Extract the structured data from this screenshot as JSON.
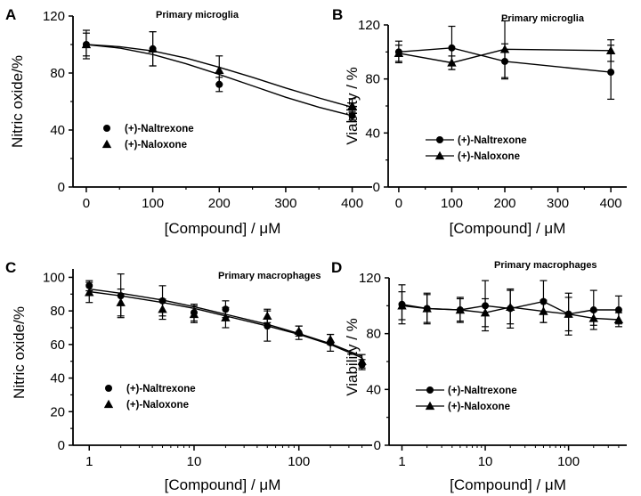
{
  "chart_data": [
    {
      "panel": "A",
      "type": "scatter",
      "title": "Primary microglia",
      "xlabel": "[Compound] / μM",
      "ylabel": "Nitric oxide/%",
      "xscale": "linear",
      "xlim": [
        -20,
        430
      ],
      "ylim": [
        0,
        120
      ],
      "x_ticks": [
        0,
        100,
        200,
        300,
        400
      ],
      "x_tick_labels": [
        "0",
        "100",
        "200",
        "300",
        "400"
      ],
      "y_ticks": [
        0,
        40,
        80,
        120
      ],
      "y_tick_labels": [
        "0",
        "40",
        "80",
        "120"
      ],
      "legend_position": "lower-left",
      "fit_curves": true,
      "series": [
        {
          "name": "(+)-Naltrexone",
          "marker": "circle",
          "x": [
            0,
            100,
            200,
            400
          ],
          "y": [
            100,
            97,
            72,
            50
          ],
          "err": [
            8,
            12,
            5,
            3
          ],
          "fit": {
            "x": [
              0,
              50,
              100,
              150,
              200,
              250,
              300,
              350,
              400
            ],
            "y": [
              100,
              97.5,
              93,
              86.5,
              79,
              71,
              63,
              56,
              50
            ]
          }
        },
        {
          "name": "(+)-Naloxone",
          "marker": "triangle",
          "x": [
            0,
            100,
            200,
            400
          ],
          "y": [
            100,
            97,
            82,
            57
          ],
          "err": [
            10,
            12,
            10,
            5
          ],
          "fit": {
            "x": [
              0,
              50,
              100,
              150,
              200,
              250,
              300,
              350,
              400
            ],
            "y": [
              100,
              98.5,
              95.5,
              90.5,
              84,
              77,
              69.5,
              62.5,
              56
            ]
          }
        }
      ]
    },
    {
      "panel": "B",
      "type": "line",
      "title": "Primary microglia",
      "xlabel": "[Compound] / μM",
      "ylabel": "Viability / %",
      "xscale": "linear",
      "xlim": [
        -20,
        430
      ],
      "ylim": [
        0,
        120
      ],
      "x_ticks": [
        0,
        100,
        200,
        300,
        400
      ],
      "x_tick_labels": [
        "0",
        "100",
        "200",
        "300",
        "400"
      ],
      "y_ticks": [
        0,
        40,
        80,
        120
      ],
      "y_tick_labels": [
        "0",
        "40",
        "80",
        "120"
      ],
      "legend_position": "lower-left",
      "fit_curves": false,
      "series": [
        {
          "name": "(+)-Naltrexone",
          "marker": "circle",
          "x": [
            0,
            100,
            200,
            400
          ],
          "y": [
            100,
            103,
            93,
            85
          ],
          "err": [
            8,
            16,
            13,
            20
          ]
        },
        {
          "name": "(+)-Naloxone",
          "marker": "triangle",
          "x": [
            0,
            100,
            200,
            400
          ],
          "y": [
            99,
            92,
            102,
            101
          ],
          "err": [
            6,
            5,
            21,
            8
          ]
        }
      ]
    },
    {
      "panel": "C",
      "type": "scatter",
      "title": "Primary macrophages",
      "xlabel": "[Compound] / μM",
      "ylabel": "Nitric oxide/%",
      "xscale": "log",
      "xlim": [
        0.7,
        500
      ],
      "ylim": [
        0,
        105
      ],
      "x_ticks": [
        1,
        10,
        100
      ],
      "x_tick_labels": [
        "1",
        "10",
        "100"
      ],
      "y_ticks": [
        0,
        20,
        40,
        60,
        80,
        100
      ],
      "y_tick_labels": [
        "0",
        "20",
        "40",
        "60",
        "80",
        "100"
      ],
      "legend_position": "lower-left",
      "fit_curves": true,
      "series": [
        {
          "name": "(+)-Naltrexone",
          "marker": "circle",
          "x": [
            1,
            2,
            5,
            10,
            20,
            50,
            100,
            200,
            400
          ],
          "y": [
            95,
            89,
            86,
            79,
            81,
            71,
            67,
            61,
            48
          ],
          "err": [
            3,
            13,
            9,
            5,
            5,
            9,
            4,
            5,
            3
          ]
        },
        {
          "name": "(+)-Naloxone",
          "marker": "triangle",
          "x": [
            1,
            2,
            5,
            10,
            20,
            50,
            100,
            200,
            400
          ],
          "y": [
            91,
            85,
            81,
            78,
            76,
            77,
            68,
            63,
            50
          ],
          "err": [
            6,
            8,
            6,
            5,
            6,
            4,
            3,
            3,
            4
          ]
        },
        {
          "name": "",
          "marker": "none",
          "x": [
            1,
            2,
            5,
            10,
            20,
            50,
            100,
            200,
            400
          ],
          "y": [
            93,
            90.5,
            86.5,
            82.5,
            78,
            72,
            66.5,
            60.5,
            53
          ]
        },
        {
          "name": "",
          "marker": "none",
          "x": [
            1,
            2,
            5,
            10,
            20,
            50,
            100,
            200,
            400
          ],
          "y": [
            91.5,
            89,
            85,
            81.5,
            77,
            71,
            66,
            60,
            52
          ]
        }
      ]
    },
    {
      "panel": "D",
      "type": "line",
      "title": "Primary macrophages",
      "xlabel": "[Compound] / μM",
      "ylabel": "Viability / %",
      "xscale": "log",
      "xlim": [
        0.7,
        500
      ],
      "ylim": [
        0,
        120
      ],
      "x_ticks": [
        1,
        10,
        100
      ],
      "x_tick_labels": [
        "1",
        "10",
        "100"
      ],
      "y_ticks": [
        0,
        40,
        80,
        120
      ],
      "y_tick_labels": [
        "0",
        "40",
        "80",
        "120"
      ],
      "legend_position": "lower-left",
      "fit_curves": false,
      "series": [
        {
          "name": "(+)-Naltrexone",
          "marker": "circle",
          "x": [
            1,
            2,
            5,
            10,
            20,
            50,
            100,
            200,
            400
          ],
          "y": [
            101,
            98,
            97,
            100,
            98,
            103,
            94,
            97,
            97
          ],
          "err": [
            14,
            10,
            8,
            18,
            14,
            15,
            15,
            14,
            10
          ]
        },
        {
          "name": "(+)-Naloxone",
          "marker": "triangle",
          "x": [
            1,
            2,
            5,
            10,
            20,
            50,
            100,
            200,
            400
          ],
          "y": [
            100,
            98,
            97,
            95,
            99,
            96,
            94,
            91,
            90
          ],
          "err": [
            10,
            11,
            9,
            10,
            12,
            8,
            12,
            5,
            5
          ]
        }
      ]
    }
  ]
}
